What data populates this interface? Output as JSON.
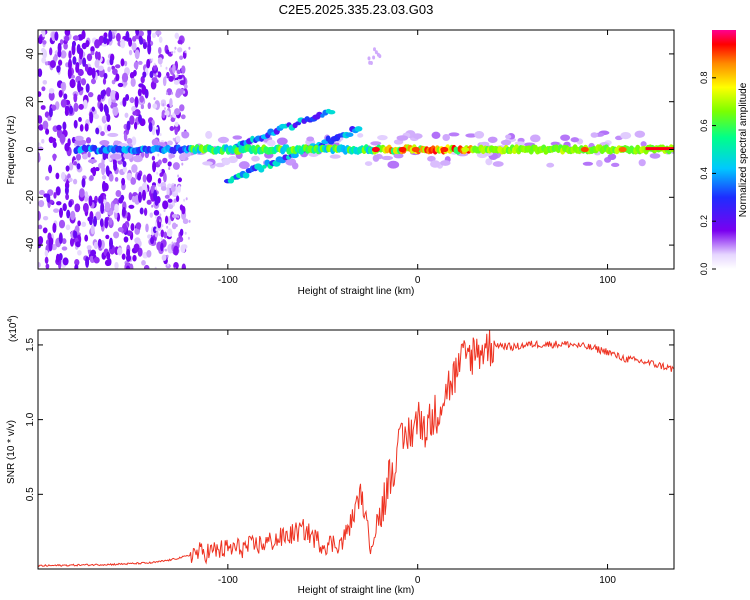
{
  "figure": {
    "title": "C2E5.2025.335.23.03.G03"
  },
  "colorbar": {
    "label": "Normalized spectral amplitude",
    "ticks": [
      "0.0",
      "0.2",
      "0.4",
      "0.6",
      "0.8"
    ]
  },
  "chart_data": [
    {
      "type": "heatmap",
      "title": "",
      "xlabel": "Height of straight line (km)",
      "ylabel": "Frequency (Hz)",
      "xlim": [
        -200,
        135
      ],
      "ylim": [
        -50,
        50
      ],
      "xticks": [
        -100,
        0,
        100
      ],
      "xtick_labels": [
        "-100",
        "0",
        "100"
      ],
      "yticks": [
        -40,
        -20,
        0,
        20,
        40
      ],
      "ytick_labels": [
        "-40",
        "-20",
        "0",
        "20",
        "40"
      ],
      "colorscale": "rainbow",
      "zlim": [
        0,
        1
      ],
      "features": [
        {
          "name": "main-band",
          "x_start": -180,
          "x_end": 135,
          "freq": 0
        },
        {
          "name": "upper-branch",
          "x_start": -95,
          "x_end": -45,
          "freq_start": 2,
          "freq_end": 16
        },
        {
          "name": "lower-branch",
          "x_start": -100,
          "x_end": -30,
          "freq_start": -13,
          "freq_end": 9
        },
        {
          "name": "noise-region",
          "x_start": -200,
          "x_end": -125
        }
      ]
    },
    {
      "type": "line",
      "title": "",
      "xlabel": "Height of straight line (km)",
      "ylabel": "SNR (10 * v/v)",
      "yscale_label": "(x10",
      "yscale_exp": "4",
      "xlim": [
        -200,
        135
      ],
      "ylim": [
        0,
        1.6
      ],
      "xticks": [
        -100,
        0,
        100
      ],
      "xtick_labels": [
        "-100",
        "0",
        "100"
      ],
      "yticks": [
        0.5,
        1.0,
        1.5
      ],
      "ytick_labels": [
        "0.5",
        "1.0",
        "1.5"
      ],
      "series": [
        {
          "name": "SNR",
          "color": "#ee3322",
          "x": [
            -200,
            -180,
            -160,
            -140,
            -130,
            -120,
            -110,
            -100,
            -90,
            -80,
            -70,
            -60,
            -50,
            -40,
            -35,
            -30,
            -25,
            -20,
            -15,
            -10,
            -5,
            0,
            5,
            10,
            15,
            20,
            25,
            30,
            35,
            40,
            50,
            60,
            70,
            80,
            90,
            100,
            105,
            110,
            120,
            130,
            135
          ],
          "y": [
            0.02,
            0.025,
            0.03,
            0.04,
            0.06,
            0.09,
            0.1,
            0.12,
            0.13,
            0.16,
            0.2,
            0.25,
            0.15,
            0.16,
            0.3,
            0.5,
            0.15,
            0.35,
            0.62,
            0.8,
            0.9,
            1.0,
            0.95,
            1.05,
            1.2,
            1.3,
            1.42,
            1.45,
            1.48,
            1.5,
            1.48,
            1.5,
            1.5,
            1.5,
            1.48,
            1.45,
            1.42,
            1.4,
            1.38,
            1.35,
            1.33
          ]
        }
      ]
    }
  ]
}
